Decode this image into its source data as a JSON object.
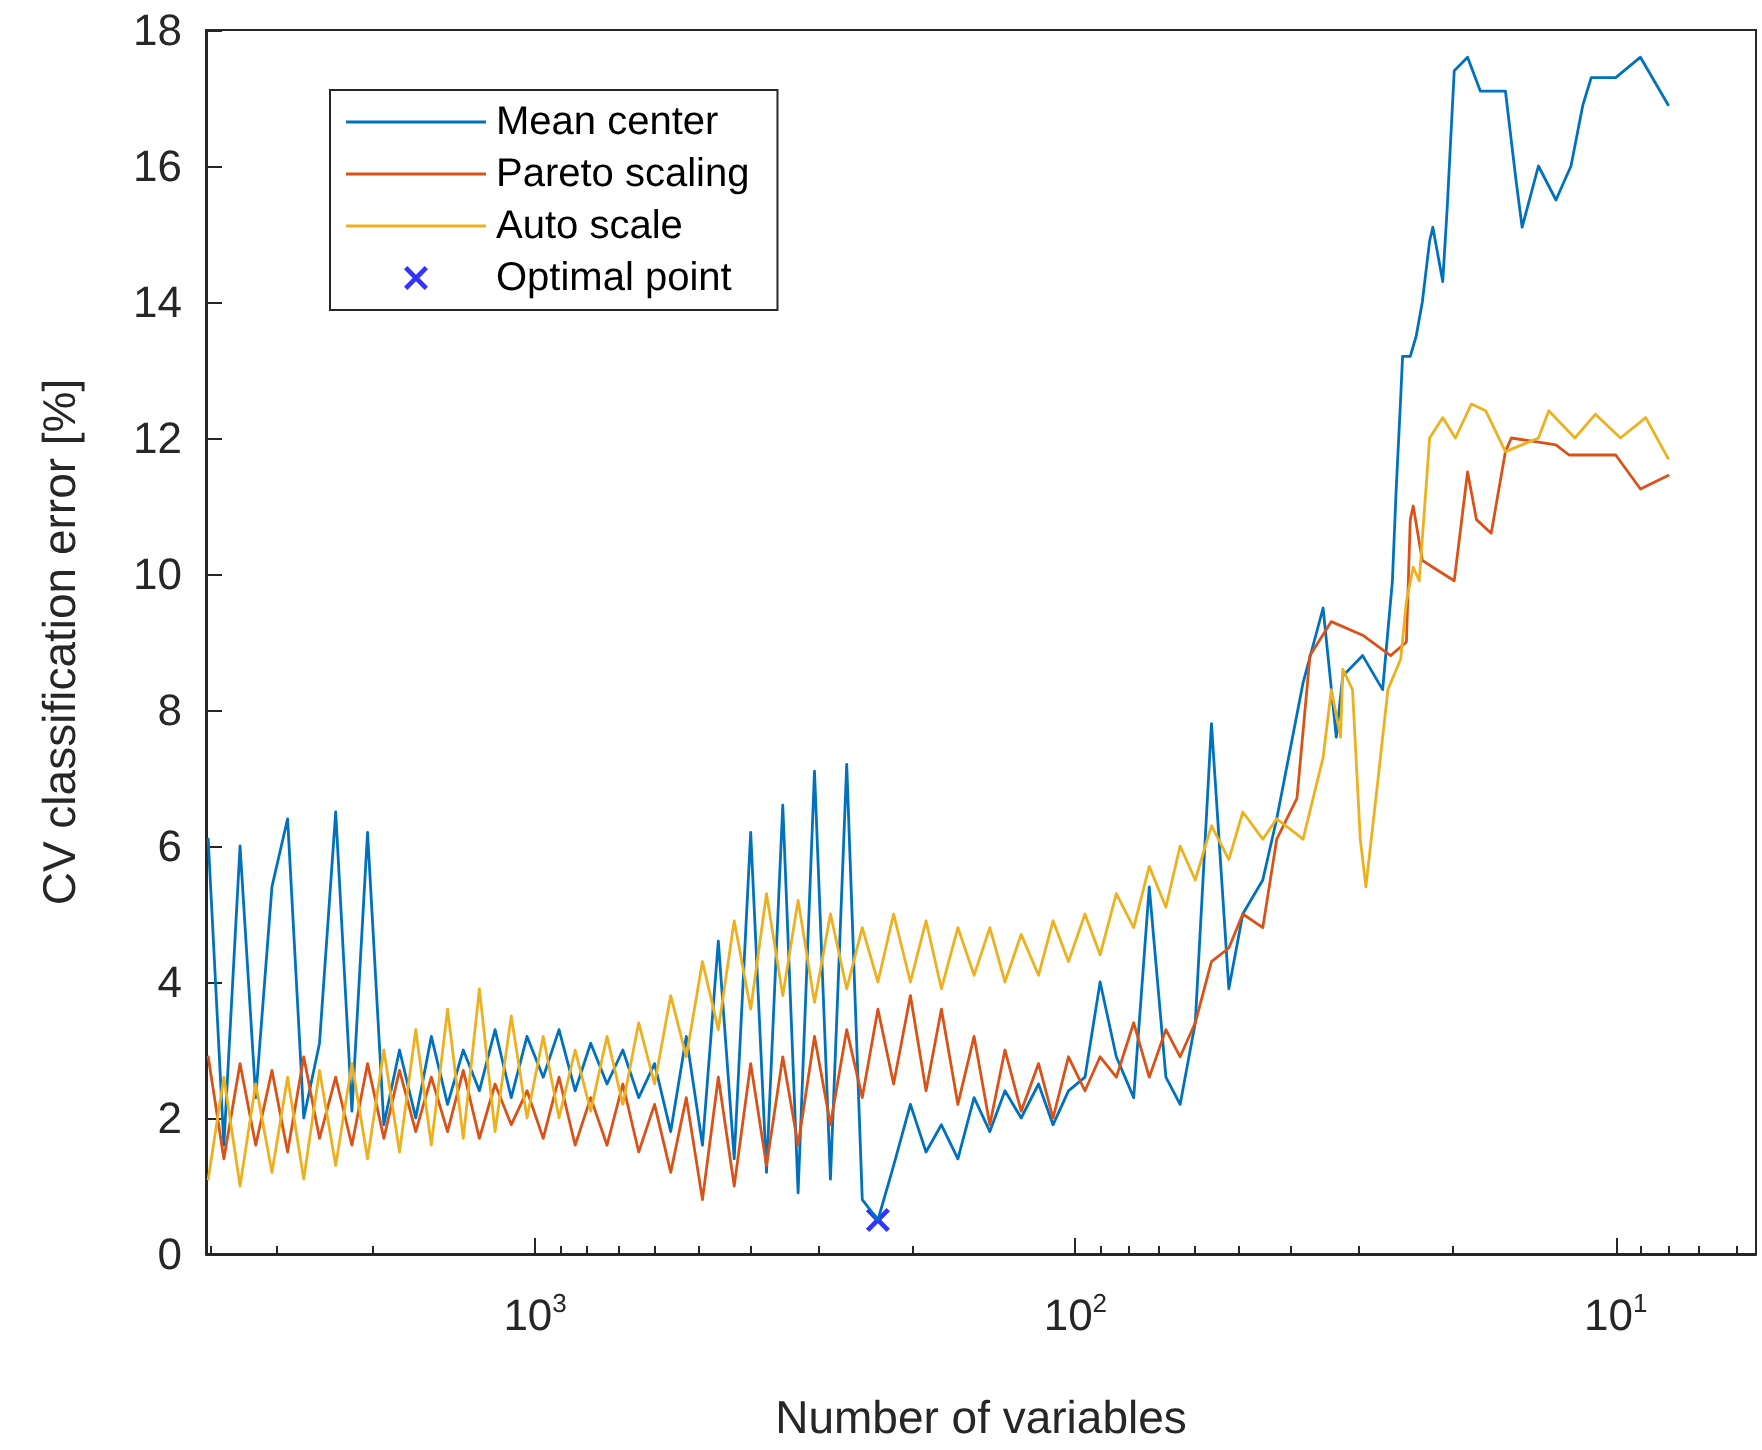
{
  "chart_data": {
    "type": "line",
    "xlabel": "Number of variables",
    "ylabel": "CV classification error [%]",
    "xlim": [
      4065,
      5.5
    ],
    "xticks": [
      {
        "value": 1000,
        "label": "10$^{3}$"
      },
      {
        "value": 100,
        "label": "10$^{2}$"
      },
      {
        "value": 10,
        "label": "10$^{1}$"
      }
    ],
    "ylim": [
      0,
      18
    ],
    "yticks": [
      0,
      2,
      4,
      6,
      8,
      10,
      12,
      14,
      16,
      18
    ],
    "log": "x",
    "grid": false,
    "legend": "top left",
    "line_style": "solid",
    "series": [
      {
        "name": "Mean center",
        "color": "#0072bd",
        "marker": "none",
        "x": [
          4027,
          3767,
          3516,
          3289,
          3069,
          2871,
          2680,
          2506,
          2339,
          2183,
          2042,
          1905,
          1782,
          1663,
          1556,
          1452,
          1358,
          1268,
          1186,
          1107,
          1035,
          966,
          903,
          843,
          789,
          736,
          688,
          643,
          601,
          561,
          525,
          490,
          458,
          428,
          399,
          373,
          348,
          326,
          304,
          284,
          265,
          248,
          232,
          217,
          202,
          189,
          177,
          165,
          154,
          144,
          135,
          126,
          117,
          110,
          103,
          96,
          90,
          84,
          78,
          73,
          68,
          64,
          60,
          56,
          52,
          49,
          45,
          42.4,
          37.9,
          34.8,
          32.9,
          32,
          29.4,
          27,
          25.9,
          25.5,
          25,
          24.8,
          24,
          23.4,
          22.8,
          22.1,
          21.8,
          20.9,
          20.5,
          20.2,
          19.9,
          18.8,
          17.8,
          16,
          15.3,
          14.9,
          13.9,
          12.9,
          12.1,
          11.5,
          11.1,
          10,
          9,
          8
        ],
        "values": [
          6.1,
          1.6,
          6.0,
          2.3,
          5.4,
          6.4,
          2.0,
          3.1,
          6.5,
          2.1,
          6.2,
          1.9,
          3.0,
          2.0,
          3.2,
          2.2,
          3.0,
          2.4,
          3.3,
          2.3,
          3.2,
          2.6,
          3.3,
          2.4,
          3.1,
          2.5,
          3.0,
          2.3,
          2.8,
          1.8,
          3.2,
          1.6,
          4.6,
          1.4,
          6.2,
          1.2,
          6.6,
          0.9,
          7.1,
          1.1,
          7.2,
          0.8,
          0.5,
          1.3,
          2.2,
          1.5,
          1.9,
          1.4,
          2.3,
          1.8,
          2.4,
          2.0,
          2.5,
          1.9,
          2.4,
          2.6,
          4.0,
          2.9,
          2.3,
          5.4,
          2.6,
          2.2,
          3.4,
          7.8,
          3.9,
          5.0,
          5.5,
          6.4,
          8.4,
          9.5,
          7.6,
          8.5,
          8.8,
          8.3,
          9.9,
          11.2,
          12.6,
          13.2,
          13.2,
          13.5,
          14.0,
          14.9,
          15.1,
          14.3,
          15.4,
          16.4,
          17.4,
          17.6,
          17.1,
          17.1,
          15.8,
          15.1,
          16.0,
          15.5,
          16.0,
          16.9,
          17.3,
          17.3,
          17.6,
          16.9
        ]
      },
      {
        "name": "Pareto scaling",
        "color": "#d95319",
        "marker": "none",
        "x": [
          4027,
          3767,
          3516,
          3289,
          3069,
          2871,
          2680,
          2506,
          2339,
          2183,
          2042,
          1905,
          1782,
          1663,
          1556,
          1452,
          1358,
          1268,
          1186,
          1107,
          1035,
          966,
          903,
          843,
          789,
          736,
          688,
          643,
          601,
          561,
          525,
          490,
          458,
          428,
          399,
          373,
          348,
          326,
          304,
          284,
          265,
          248,
          232,
          217,
          202,
          189,
          177,
          165,
          154,
          144,
          135,
          126,
          117,
          110,
          103,
          96,
          90,
          84,
          78,
          73,
          68,
          64,
          60,
          56,
          52,
          49,
          45,
          42.4,
          38.9,
          36.8,
          33.6,
          29.4,
          26.1,
          24.4,
          24.0,
          23.7,
          22.8,
          21.8,
          19.9,
          18.8,
          18.1,
          17.0,
          16.0,
          15.6,
          12.9,
          12.2,
          10,
          9,
          8
        ],
        "values": [
          2.9,
          1.4,
          2.8,
          1.6,
          2.7,
          1.5,
          2.9,
          1.7,
          2.6,
          1.6,
          2.8,
          1.7,
          2.7,
          1.8,
          2.6,
          1.8,
          2.7,
          1.7,
          2.5,
          1.9,
          2.4,
          1.7,
          2.6,
          1.6,
          2.3,
          1.6,
          2.5,
          1.5,
          2.2,
          1.2,
          2.3,
          0.8,
          2.6,
          1.0,
          2.8,
          1.3,
          2.9,
          1.6,
          3.2,
          1.9,
          3.3,
          2.3,
          3.6,
          2.5,
          3.8,
          2.4,
          3.6,
          2.2,
          3.2,
          1.9,
          3.0,
          2.1,
          2.8,
          2.0,
          2.9,
          2.4,
          2.9,
          2.6,
          3.4,
          2.6,
          3.3,
          2.9,
          3.4,
          4.3,
          4.5,
          5.0,
          4.8,
          6.1,
          6.7,
          8.8,
          9.3,
          9.1,
          8.8,
          9.0,
          10.8,
          11.0,
          10.2,
          10.1,
          9.9,
          11.5,
          10.8,
          10.6,
          11.8,
          12.0,
          11.9,
          11.75,
          11.75,
          11.25,
          11.45
        ]
      },
      {
        "name": "Auto scale",
        "color": "#edb120",
        "marker": "none",
        "x": [
          4027,
          3767,
          3516,
          3289,
          3069,
          2871,
          2680,
          2506,
          2339,
          2183,
          2042,
          1905,
          1782,
          1663,
          1556,
          1452,
          1358,
          1268,
          1186,
          1107,
          1035,
          966,
          903,
          843,
          789,
          736,
          688,
          643,
          601,
          561,
          525,
          490,
          458,
          428,
          399,
          373,
          348,
          326,
          304,
          284,
          265,
          248,
          232,
          217,
          202,
          189,
          177,
          165,
          154,
          144,
          135,
          126,
          117,
          110,
          103,
          96,
          90,
          84,
          78,
          73,
          68,
          64,
          60,
          56,
          52,
          49,
          45,
          42.4,
          37.9,
          34.8,
          33.6,
          32.3,
          32.0,
          30.7,
          29.7,
          29.0,
          27.7,
          26.4,
          25.0,
          24.4,
          23.7,
          23.1,
          22.1,
          20.9,
          19.8,
          18.5,
          17.4,
          16.0,
          13.9,
          13.3,
          11.9,
          10.9,
          9.8,
          8.8,
          8
        ],
        "values": [
          1.1,
          2.6,
          1.0,
          2.5,
          1.2,
          2.6,
          1.1,
          2.7,
          1.3,
          2.8,
          1.4,
          3.0,
          1.5,
          3.3,
          1.6,
          3.6,
          1.7,
          3.9,
          1.8,
          3.5,
          2.0,
          3.2,
          2.0,
          3.0,
          2.1,
          3.2,
          2.2,
          3.4,
          2.5,
          3.8,
          2.9,
          4.3,
          3.3,
          4.9,
          3.6,
          5.3,
          3.8,
          5.2,
          3.7,
          5.0,
          3.9,
          4.8,
          4.0,
          5.0,
          4.0,
          4.9,
          3.9,
          4.8,
          4.1,
          4.8,
          4.0,
          4.7,
          4.1,
          4.9,
          4.3,
          5.0,
          4.4,
          5.3,
          4.8,
          5.7,
          5.1,
          6.0,
          5.5,
          6.3,
          5.8,
          6.5,
          6.1,
          6.4,
          6.1,
          7.3,
          8.3,
          7.6,
          8.6,
          8.3,
          6.1,
          5.4,
          6.8,
          8.3,
          8.75,
          9.6,
          10.1,
          9.9,
          12.0,
          12.3,
          12.0,
          12.5,
          12.4,
          11.8,
          12.0,
          12.4,
          12.0,
          12.35,
          12.0,
          12.3,
          11.7
        ]
      },
      {
        "name": "Optimal point",
        "type": "scatter",
        "color": "#0000ff",
        "marker": "cross",
        "x": [
          232
        ],
        "values": [
          0.5
        ]
      }
    ]
  }
}
